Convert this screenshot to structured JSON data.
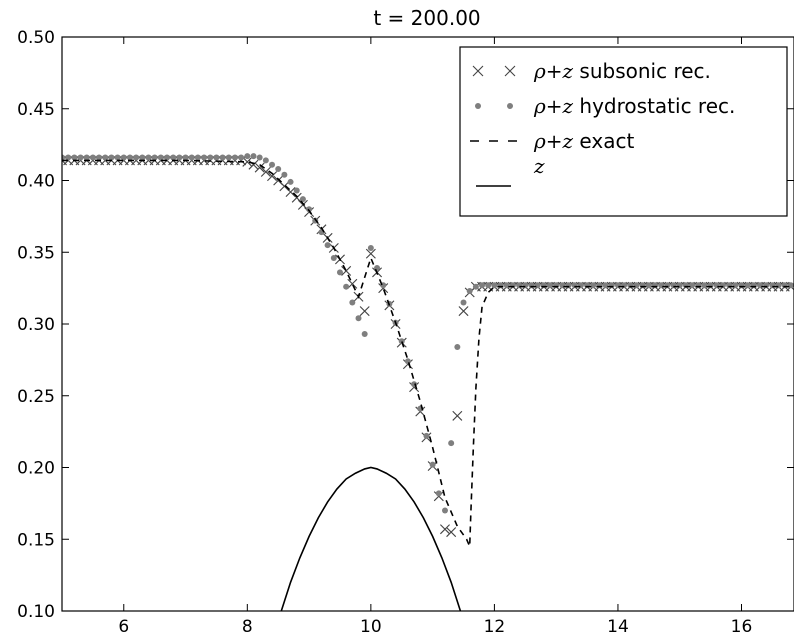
{
  "chart_data": {
    "type": "line",
    "title": "t = 200.00",
    "xlabel": "",
    "ylabel": "",
    "xlim": [
      5.0,
      16.85
    ],
    "ylim": [
      0.1,
      0.5
    ],
    "xticks": [
      6,
      8,
      10,
      12,
      14,
      16
    ],
    "yticks": [
      0.1,
      0.15,
      0.2,
      0.25,
      0.3,
      0.35,
      0.4,
      0.45,
      0.5
    ],
    "xtick_labels": [
      "6",
      "8",
      "10",
      "12",
      "14",
      "16"
    ],
    "ytick_labels": [
      "0.10",
      "0.15",
      "0.20",
      "0.25",
      "0.30",
      "0.35",
      "0.40",
      "0.45",
      "0.50"
    ],
    "grid": false,
    "legend_position": "top-right",
    "legend": [
      {
        "math": "ρ+z",
        "text": " subsonic rec.",
        "marker": "x"
      },
      {
        "math": "ρ+z",
        "text": " hydrostatic rec.",
        "marker": "dot"
      },
      {
        "math": "ρ+z",
        "text": " exact",
        "marker": "dashed"
      },
      {
        "math": "z",
        "text": "",
        "marker": "line"
      }
    ],
    "colors": {
      "x_marker": "#444444",
      "dot_marker": "#7f7f7f",
      "line": "#000000"
    },
    "series": [
      {
        "name": "ρ+z subsonic rec.",
        "style": "x-markers",
        "x": [
          5.0,
          5.1,
          5.2,
          5.3,
          5.4,
          5.5,
          5.6,
          5.7,
          5.8,
          5.9,
          6.0,
          6.1,
          6.2,
          6.3,
          6.4,
          6.5,
          6.6,
          6.7,
          6.8,
          6.9,
          7.0,
          7.1,
          7.2,
          7.3,
          7.4,
          7.5,
          7.6,
          7.7,
          7.8,
          7.9,
          8.0,
          8.1,
          8.2,
          8.3,
          8.4,
          8.5,
          8.6,
          8.7,
          8.8,
          8.9,
          9.0,
          9.1,
          9.2,
          9.3,
          9.4,
          9.5,
          9.6,
          9.7,
          9.8,
          9.9,
          10.0,
          10.1,
          10.2,
          10.3,
          10.4,
          10.5,
          10.6,
          10.7,
          10.8,
          10.9,
          11.0,
          11.1,
          11.2,
          11.3,
          11.4,
          11.5,
          11.6,
          11.7,
          11.8,
          11.9,
          12.0,
          12.1,
          12.2,
          12.3,
          12.4,
          12.5,
          12.6,
          12.7,
          12.8,
          12.9,
          13.0,
          13.1,
          13.2,
          13.3,
          13.4,
          13.5,
          13.6,
          13.7,
          13.8,
          13.9,
          14.0,
          14.1,
          14.2,
          14.3,
          14.4,
          14.5,
          14.6,
          14.7,
          14.8,
          14.9,
          15.0,
          15.1,
          15.2,
          15.3,
          15.4,
          15.5,
          15.6,
          15.7,
          15.8,
          15.9,
          16.0,
          16.1,
          16.2,
          16.3,
          16.4,
          16.5,
          16.6,
          16.7,
          16.8
        ],
        "y": [
          0.414,
          0.414,
          0.414,
          0.414,
          0.414,
          0.414,
          0.414,
          0.414,
          0.414,
          0.414,
          0.414,
          0.414,
          0.414,
          0.414,
          0.414,
          0.414,
          0.414,
          0.414,
          0.414,
          0.414,
          0.414,
          0.414,
          0.414,
          0.414,
          0.414,
          0.414,
          0.414,
          0.414,
          0.414,
          0.414,
          0.413,
          0.411,
          0.409,
          0.406,
          0.403,
          0.4,
          0.396,
          0.392,
          0.388,
          0.383,
          0.378,
          0.372,
          0.366,
          0.36,
          0.353,
          0.345,
          0.337,
          0.328,
          0.319,
          0.309,
          0.349,
          0.336,
          0.325,
          0.313,
          0.3,
          0.287,
          0.272,
          0.256,
          0.239,
          0.221,
          0.201,
          0.18,
          0.157,
          0.155,
          0.236,
          0.309,
          0.322,
          0.326,
          0.326,
          0.326,
          0.326,
          0.326,
          0.326,
          0.326,
          0.326,
          0.326,
          0.326,
          0.326,
          0.326,
          0.326,
          0.326,
          0.326,
          0.326,
          0.326,
          0.326,
          0.326,
          0.326,
          0.326,
          0.326,
          0.326,
          0.326,
          0.326,
          0.326,
          0.326,
          0.326,
          0.326,
          0.326,
          0.326,
          0.326,
          0.326,
          0.326,
          0.326,
          0.326,
          0.326,
          0.326,
          0.326,
          0.326,
          0.326,
          0.326,
          0.326,
          0.326,
          0.326,
          0.326,
          0.326,
          0.326,
          0.326,
          0.326,
          0.326,
          0.326
        ]
      },
      {
        "name": "ρ+z hydrostatic rec.",
        "style": "dot-markers",
        "x": [
          5.0,
          5.1,
          5.2,
          5.3,
          5.4,
          5.5,
          5.6,
          5.7,
          5.8,
          5.9,
          6.0,
          6.1,
          6.2,
          6.3,
          6.4,
          6.5,
          6.6,
          6.7,
          6.8,
          6.9,
          7.0,
          7.1,
          7.2,
          7.3,
          7.4,
          7.5,
          7.6,
          7.7,
          7.8,
          7.9,
          8.0,
          8.1,
          8.2,
          8.3,
          8.4,
          8.5,
          8.6,
          8.7,
          8.8,
          8.9,
          9.0,
          9.1,
          9.2,
          9.3,
          9.4,
          9.5,
          9.6,
          9.7,
          9.8,
          9.9,
          10.0,
          10.1,
          10.2,
          10.3,
          10.4,
          10.5,
          10.6,
          10.7,
          10.8,
          10.9,
          11.0,
          11.1,
          11.2,
          11.3,
          11.4,
          11.5,
          11.6,
          11.7,
          11.8,
          11.9,
          12.0,
          12.1,
          12.2,
          12.3,
          12.4,
          12.5,
          12.6,
          12.7,
          12.8,
          12.9,
          13.0,
          13.1,
          13.2,
          13.3,
          13.4,
          13.5,
          13.6,
          13.7,
          13.8,
          13.9,
          14.0,
          14.1,
          14.2,
          14.3,
          14.4,
          14.5,
          14.6,
          14.7,
          14.8,
          14.9,
          15.0,
          15.1,
          15.2,
          15.3,
          15.4,
          15.5,
          15.6,
          15.7,
          15.8,
          15.9,
          16.0,
          16.1,
          16.2,
          16.3,
          16.4,
          16.5,
          16.6,
          16.7,
          16.8
        ],
        "y": [
          0.416,
          0.416,
          0.416,
          0.416,
          0.416,
          0.416,
          0.416,
          0.416,
          0.416,
          0.416,
          0.416,
          0.416,
          0.416,
          0.416,
          0.416,
          0.416,
          0.416,
          0.416,
          0.416,
          0.416,
          0.416,
          0.416,
          0.416,
          0.416,
          0.416,
          0.416,
          0.416,
          0.416,
          0.416,
          0.416,
          0.417,
          0.417,
          0.416,
          0.414,
          0.411,
          0.408,
          0.404,
          0.399,
          0.393,
          0.387,
          0.38,
          0.372,
          0.364,
          0.355,
          0.346,
          0.336,
          0.326,
          0.315,
          0.304,
          0.293,
          0.353,
          0.339,
          0.327,
          0.314,
          0.301,
          0.288,
          0.274,
          0.258,
          0.241,
          0.222,
          0.202,
          0.182,
          0.17,
          0.217,
          0.284,
          0.315,
          0.323,
          0.326,
          0.327,
          0.327,
          0.327,
          0.327,
          0.327,
          0.327,
          0.327,
          0.327,
          0.327,
          0.327,
          0.327,
          0.327,
          0.327,
          0.327,
          0.327,
          0.327,
          0.327,
          0.327,
          0.327,
          0.327,
          0.327,
          0.327,
          0.327,
          0.327,
          0.327,
          0.327,
          0.327,
          0.327,
          0.327,
          0.327,
          0.327,
          0.327,
          0.327,
          0.327,
          0.327,
          0.327,
          0.327,
          0.327,
          0.327,
          0.327,
          0.327,
          0.327,
          0.327,
          0.327,
          0.327,
          0.327,
          0.327,
          0.327,
          0.327,
          0.327,
          0.327
        ]
      },
      {
        "name": "ρ+z exact",
        "style": "dashed",
        "x": [
          5.0,
          6.0,
          7.0,
          8.0,
          8.2,
          8.4,
          8.6,
          8.8,
          9.0,
          9.2,
          9.4,
          9.6,
          9.8,
          10.0,
          10.2,
          10.4,
          10.6,
          10.8,
          11.0,
          11.2,
          11.4,
          11.5,
          11.55,
          11.6,
          11.62,
          11.66,
          11.7,
          11.75,
          11.8,
          11.9,
          12.0,
          12.2,
          13.0,
          14.0,
          15.0,
          16.0,
          16.85
        ],
        "y": [
          0.414,
          0.414,
          0.414,
          0.413,
          0.411,
          0.405,
          0.397,
          0.389,
          0.379,
          0.367,
          0.353,
          0.337,
          0.319,
          0.346,
          0.325,
          0.301,
          0.275,
          0.246,
          0.214,
          0.179,
          0.159,
          0.153,
          0.15,
          0.145,
          0.17,
          0.215,
          0.255,
          0.29,
          0.312,
          0.322,
          0.326,
          0.326,
          0.326,
          0.326,
          0.326,
          0.326,
          0.326
        ]
      },
      {
        "name": "z",
        "style": "solid",
        "x": [
          8.55,
          8.7,
          8.85,
          9.0,
          9.15,
          9.3,
          9.45,
          9.6,
          9.75,
          9.9,
          10.0,
          10.1,
          10.25,
          10.4,
          10.55,
          10.7,
          10.85,
          11.0,
          11.15,
          11.3,
          11.45
        ],
        "y": [
          0.1,
          0.12,
          0.137,
          0.152,
          0.165,
          0.176,
          0.185,
          0.192,
          0.196,
          0.199,
          0.2,
          0.199,
          0.196,
          0.192,
          0.185,
          0.176,
          0.165,
          0.152,
          0.137,
          0.12,
          0.1
        ]
      }
    ]
  }
}
